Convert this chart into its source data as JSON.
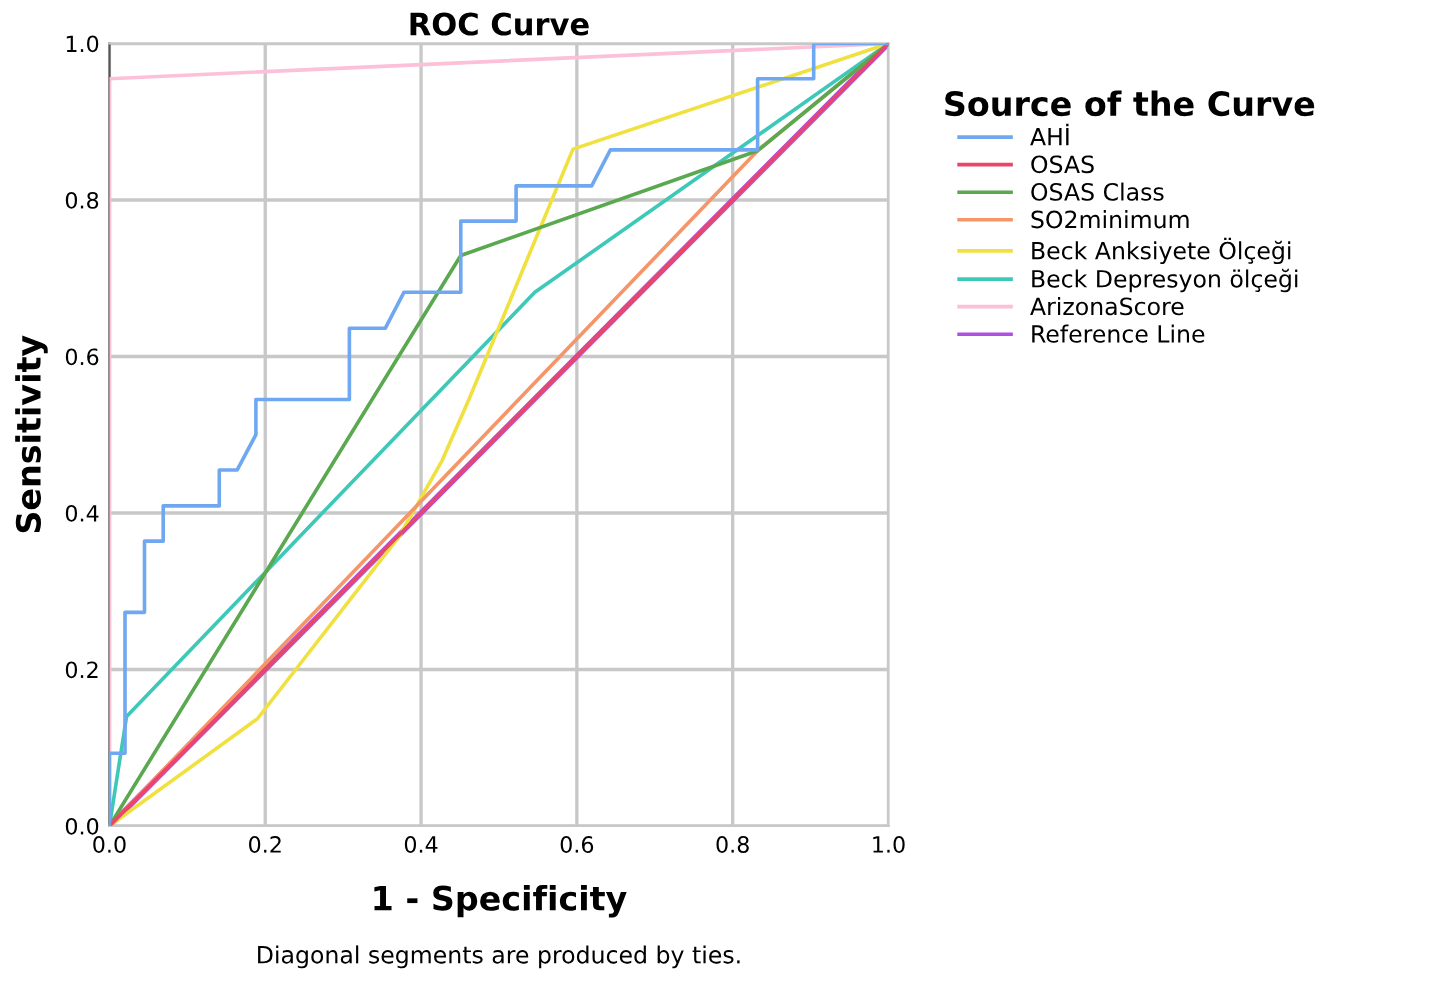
{
  "chart_data": {
    "type": "line",
    "title": "ROC Curve",
    "xlabel": "1 - Specificity",
    "ylabel": "Sensitivity",
    "legend_title": "Source of the Curve",
    "xlim": [
      0,
      1
    ],
    "ylim": [
      0,
      1
    ],
    "xticks": [
      {
        "value": 0,
        "label": "0.0"
      },
      0.2,
      0.4,
      0.6,
      0.8,
      {
        "value": 1,
        "label": "1.0"
      }
    ],
    "yticks": [
      {
        "value": 0,
        "label": "0.0"
      },
      0.2,
      0.4,
      0.6,
      0.8,
      {
        "value": 1,
        "label": "1.0"
      }
    ],
    "grid": true,
    "legend": "right",
    "marker": "none",
    "line_style": "solid",
    "annotations": [
      "Diagonal segments are produced by ties."
    ],
    "series": [
      {
        "name": "AHİ",
        "color": "#6fa8f0",
        "x": [
          0,
          0,
          0.02,
          0.02,
          0.045,
          0.045,
          0.069,
          0.069,
          0.141,
          0.141,
          0.164,
          0.188,
          0.188,
          0.308,
          0.308,
          0.354,
          0.378,
          0.451,
          0.451,
          0.522,
          0.522,
          0.619,
          0.643,
          0.832,
          0.832,
          0.904,
          0.904,
          1
        ],
        "values": [
          0,
          0.093,
          0.093,
          0.273,
          0.273,
          0.364,
          0.364,
          0.409,
          0.409,
          0.455,
          0.455,
          0.5,
          0.545,
          0.545,
          0.636,
          0.636,
          0.682,
          0.682,
          0.773,
          0.773,
          0.818,
          0.818,
          0.864,
          0.864,
          0.955,
          0.955,
          1,
          1
        ]
      },
      {
        "name": "OSAS",
        "color": "#e8466a",
        "x": [
          0,
          1
        ],
        "values": [
          0,
          1
        ]
      },
      {
        "name": "OSAS Class",
        "color": "#5aa84f",
        "x": [
          0,
          0.451,
          0.832,
          1
        ],
        "values": [
          0,
          0.729,
          0.863,
          1
        ]
      },
      {
        "name": "SO2minimum",
        "color": "#f5956a",
        "x": [
          0,
          0.832,
          1
        ],
        "values": [
          0,
          0.863,
          1
        ]
      },
      {
        "name": "Beck Anksiyete Ölçeği",
        "color": "#f0e040",
        "x": [
          0,
          0.19,
          0.372,
          0.427,
          0.461,
          0.595,
          1
        ],
        "values": [
          0,
          0.137,
          0.37,
          0.467,
          0.544,
          0.865,
          1
        ]
      },
      {
        "name": "Beck Depresyon ölçeği",
        "color": "#3ec8b8",
        "x": [
          0,
          0.022,
          0.546,
          1
        ],
        "values": [
          0,
          0.14,
          0.682,
          1
        ]
      },
      {
        "name": "ArizonaScore",
        "color": "#fcc0d8",
        "x": [
          0,
          0,
          1
        ],
        "values": [
          0,
          0.955,
          1
        ]
      },
      {
        "name": "Reference Line",
        "color": "#b050e0",
        "x": [
          0,
          1
        ],
        "values": [
          0,
          1
        ]
      }
    ]
  }
}
